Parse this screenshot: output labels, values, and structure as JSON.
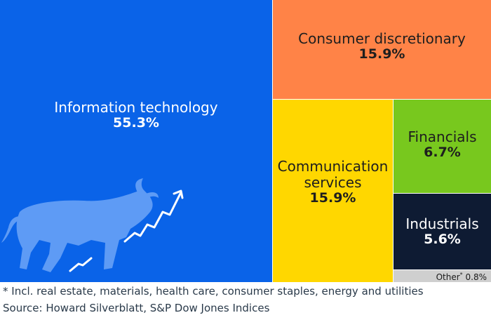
{
  "chart_data": {
    "type": "treemap",
    "series": [
      {
        "name": "Information technology",
        "value": 55.3,
        "value_label": "55.3%",
        "color": "#0a63e8"
      },
      {
        "name": "Consumer discretionary",
        "value": 15.9,
        "value_label": "15.9%",
        "color": "#ff8347"
      },
      {
        "name": "Communication services",
        "value": 15.9,
        "value_label": "15.9%",
        "color": "#ffd700"
      },
      {
        "name": "Financials",
        "value": 6.7,
        "value_label": "6.7%",
        "color": "#78c81e"
      },
      {
        "name": "Industrials",
        "value": 5.6,
        "value_label": "5.6%",
        "color": "#0e1b33"
      },
      {
        "name": "Other",
        "value": 0.8,
        "value_label": "0.8%",
        "footnote_mark": "*",
        "color": "#cfcfcf"
      }
    ]
  },
  "labels": {
    "it_line1": "Information technology",
    "cd_line1": "Consumer discretionary",
    "cs_line1": "Communication",
    "cs_line2": "services",
    "fin_line1": "Financials",
    "ind_line1": "Industrials",
    "other_line1": "Other"
  },
  "decoration": {
    "icon": "bull-market-icon"
  },
  "footnotes": {
    "note": "* Incl. real estate, materials, health care, consumer staples, energy and utilities",
    "source": "Source: Howard Silverblatt, S&P Dow Jones Indices"
  }
}
